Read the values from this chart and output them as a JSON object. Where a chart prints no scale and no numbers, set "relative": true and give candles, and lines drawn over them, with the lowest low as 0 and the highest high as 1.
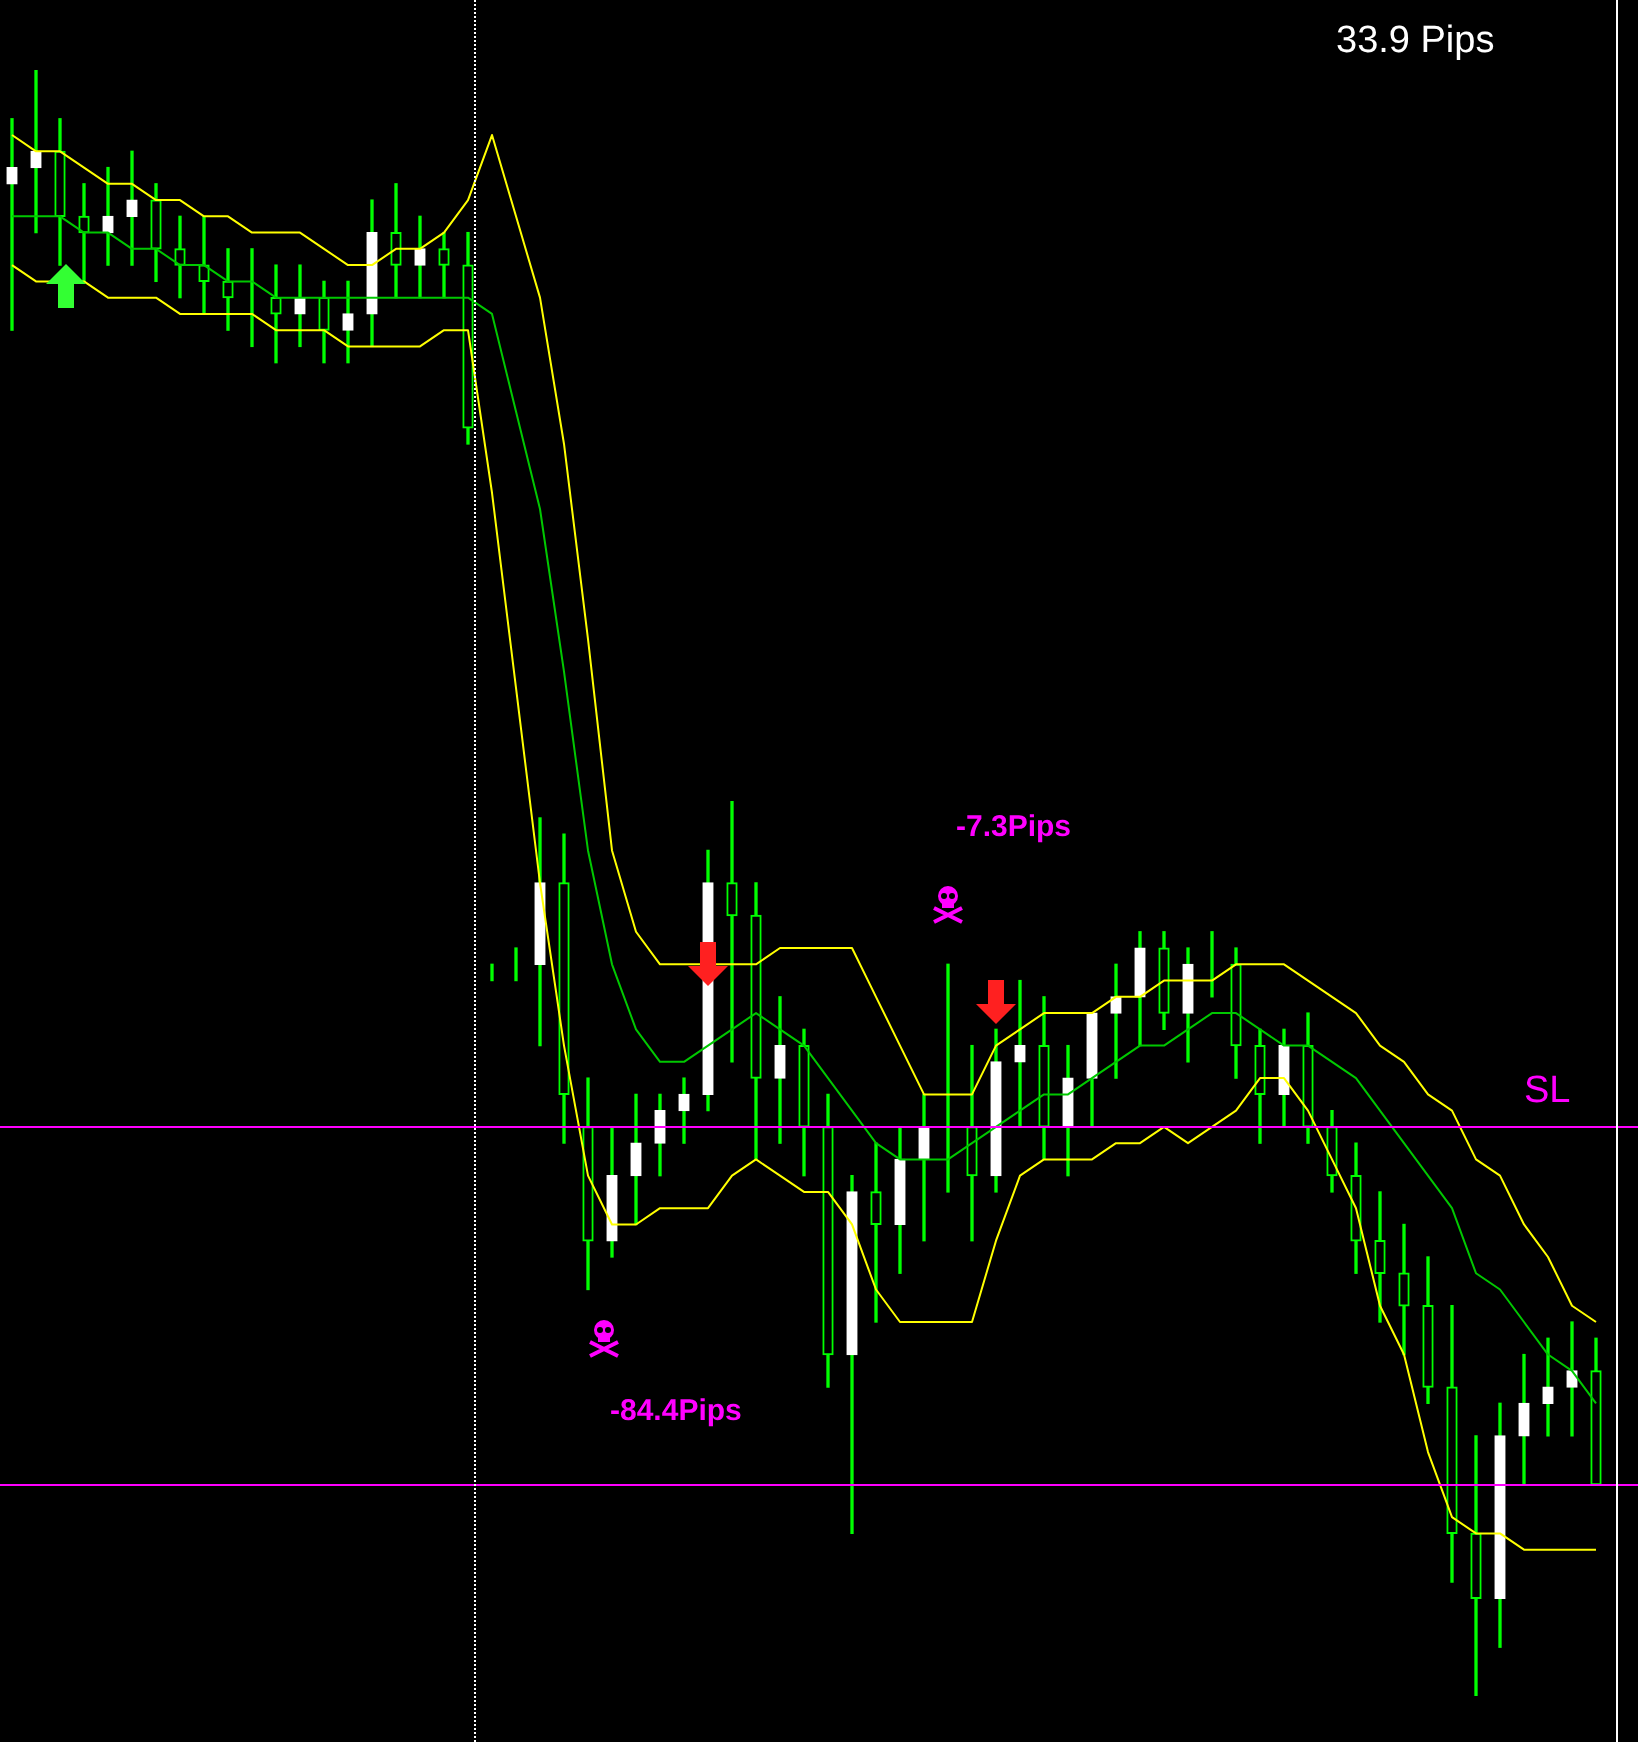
{
  "chart_data": {
    "type": "candlestick",
    "relative": true,
    "categories": [
      null,
      null,
      null,
      null,
      null,
      null,
      null,
      null,
      null,
      null,
      null,
      null,
      null,
      null,
      null,
      null,
      null,
      null,
      null,
      null,
      null,
      null,
      null,
      null,
      null,
      null,
      null,
      null,
      null,
      null,
      null,
      null,
      null,
      null,
      null,
      null,
      null,
      null,
      null,
      null,
      null,
      null,
      null,
      null,
      null,
      null,
      null,
      null,
      null,
      null,
      null,
      null,
      null,
      null,
      null,
      null,
      null,
      null,
      null,
      null,
      null,
      null,
      null,
      null,
      null,
      null,
      null
    ],
    "ohlc": [
      [
        0.93,
        0.97,
        0.84,
        0.94
      ],
      [
        0.94,
        1.0,
        0.9,
        0.95
      ],
      [
        0.95,
        0.97,
        0.88,
        0.91
      ],
      [
        0.91,
        0.93,
        0.87,
        0.9
      ],
      [
        0.9,
        0.94,
        0.88,
        0.91
      ],
      [
        0.91,
        0.95,
        0.88,
        0.92
      ],
      [
        0.92,
        0.93,
        0.87,
        0.89
      ],
      [
        0.89,
        0.91,
        0.86,
        0.88
      ],
      [
        0.88,
        0.91,
        0.85,
        0.87
      ],
      [
        0.87,
        0.89,
        0.84,
        0.86
      ],
      [
        0.86,
        0.89,
        0.83,
        0.86
      ],
      [
        0.86,
        0.88,
        0.82,
        0.85
      ],
      [
        0.85,
        0.88,
        0.83,
        0.86
      ],
      [
        0.86,
        0.87,
        0.82,
        0.84
      ],
      [
        0.84,
        0.87,
        0.82,
        0.85
      ],
      [
        0.85,
        0.92,
        0.83,
        0.9
      ],
      [
        0.9,
        0.93,
        0.86,
        0.88
      ],
      [
        0.88,
        0.91,
        0.86,
        0.89
      ],
      [
        0.89,
        0.9,
        0.86,
        0.88
      ],
      [
        0.88,
        0.9,
        0.77,
        0.78
      ],
      [
        0.45,
        0.45,
        0.44,
        0.45
      ],
      [
        0.45,
        0.46,
        0.44,
        0.45
      ],
      [
        0.45,
        0.54,
        0.4,
        0.5
      ],
      [
        0.5,
        0.53,
        0.34,
        0.37
      ],
      [
        0.35,
        0.38,
        0.25,
        0.28
      ],
      [
        0.28,
        0.35,
        0.27,
        0.32
      ],
      [
        0.32,
        0.37,
        0.29,
        0.34
      ],
      [
        0.34,
        0.37,
        0.32,
        0.36
      ],
      [
        0.36,
        0.38,
        0.34,
        0.37
      ],
      [
        0.37,
        0.52,
        0.36,
        0.5
      ],
      [
        0.5,
        0.55,
        0.39,
        0.48
      ],
      [
        0.48,
        0.5,
        0.33,
        0.38
      ],
      [
        0.38,
        0.43,
        0.34,
        0.4
      ],
      [
        0.4,
        0.41,
        0.32,
        0.35
      ],
      [
        0.35,
        0.37,
        0.19,
        0.21
      ],
      [
        0.21,
        0.32,
        0.1,
        0.31
      ],
      [
        0.31,
        0.34,
        0.23,
        0.29
      ],
      [
        0.29,
        0.35,
        0.26,
        0.33
      ],
      [
        0.33,
        0.37,
        0.28,
        0.35
      ],
      [
        0.35,
        0.45,
        0.31,
        0.35
      ],
      [
        0.35,
        0.4,
        0.28,
        0.32
      ],
      [
        0.32,
        0.41,
        0.31,
        0.39
      ],
      [
        0.39,
        0.44,
        0.35,
        0.4
      ],
      [
        0.4,
        0.43,
        0.33,
        0.35
      ],
      [
        0.35,
        0.4,
        0.32,
        0.38
      ],
      [
        0.38,
        0.42,
        0.35,
        0.42
      ],
      [
        0.42,
        0.45,
        0.38,
        0.43
      ],
      [
        0.43,
        0.47,
        0.4,
        0.46
      ],
      [
        0.46,
        0.47,
        0.41,
        0.42
      ],
      [
        0.42,
        0.46,
        0.39,
        0.45
      ],
      [
        0.45,
        0.47,
        0.43,
        0.45
      ],
      [
        0.45,
        0.46,
        0.38,
        0.4
      ],
      [
        0.4,
        0.41,
        0.34,
        0.37
      ],
      [
        0.37,
        0.41,
        0.35,
        0.4
      ],
      [
        0.4,
        0.42,
        0.34,
        0.35
      ],
      [
        0.35,
        0.36,
        0.31,
        0.32
      ],
      [
        0.32,
        0.34,
        0.26,
        0.28
      ],
      [
        0.28,
        0.31,
        0.23,
        0.26
      ],
      [
        0.26,
        0.29,
        0.21,
        0.24
      ],
      [
        0.24,
        0.27,
        0.18,
        0.19
      ],
      [
        0.19,
        0.24,
        0.07,
        0.1
      ],
      [
        0.1,
        0.16,
        0.0,
        0.06
      ],
      [
        0.06,
        0.18,
        0.03,
        0.16
      ],
      [
        0.16,
        0.21,
        0.13,
        0.18
      ],
      [
        0.18,
        0.22,
        0.16,
        0.19
      ],
      [
        0.19,
        0.23,
        0.16,
        0.2
      ],
      [
        0.2,
        0.22,
        0.13,
        0.13
      ]
    ],
    "series": [
      {
        "type": "line",
        "color": "#ffff00",
        "values": [
          0.96,
          0.95,
          0.95,
          0.94,
          0.93,
          0.93,
          0.92,
          0.92,
          0.91,
          0.91,
          0.9,
          0.9,
          0.9,
          0.89,
          0.88,
          0.88,
          0.89,
          0.89,
          0.9,
          0.92,
          0.96,
          0.91,
          0.86,
          0.77,
          0.65,
          0.52,
          0.47,
          0.45,
          0.45,
          0.45,
          0.45,
          0.45,
          0.46,
          0.46,
          0.46,
          0.46,
          0.43,
          0.4,
          0.37,
          0.37,
          0.37,
          0.4,
          0.41,
          0.42,
          0.42,
          0.42,
          0.43,
          0.43,
          0.44,
          0.44,
          0.44,
          0.45,
          0.45,
          0.45,
          0.44,
          0.43,
          0.42,
          0.4,
          0.39,
          0.37,
          0.36,
          0.33,
          0.32,
          0.29,
          0.27,
          0.24,
          0.23
        ]
      },
      {
        "type": "line",
        "color": "#00c800",
        "values": [
          0.91,
          0.91,
          0.91,
          0.9,
          0.9,
          0.89,
          0.89,
          0.88,
          0.88,
          0.87,
          0.87,
          0.86,
          0.86,
          0.86,
          0.86,
          0.86,
          0.86,
          0.86,
          0.86,
          0.86,
          0.85,
          0.79,
          0.73,
          0.63,
          0.52,
          0.45,
          0.41,
          0.39,
          0.39,
          0.4,
          0.41,
          0.42,
          0.41,
          0.4,
          0.38,
          0.36,
          0.34,
          0.33,
          0.33,
          0.33,
          0.34,
          0.35,
          0.36,
          0.37,
          0.37,
          0.38,
          0.39,
          0.4,
          0.4,
          0.41,
          0.42,
          0.42,
          0.41,
          0.4,
          0.4,
          0.39,
          0.38,
          0.36,
          0.34,
          0.32,
          0.3,
          0.26,
          0.25,
          0.23,
          0.21,
          0.2,
          0.18
        ]
      },
      {
        "type": "line",
        "color": "#ffff00",
        "values": [
          0.88,
          0.87,
          0.87,
          0.87,
          0.86,
          0.86,
          0.86,
          0.85,
          0.85,
          0.85,
          0.85,
          0.84,
          0.84,
          0.84,
          0.83,
          0.83,
          0.83,
          0.83,
          0.84,
          0.84,
          0.74,
          0.62,
          0.5,
          0.4,
          0.32,
          0.29,
          0.29,
          0.3,
          0.3,
          0.3,
          0.32,
          0.33,
          0.32,
          0.31,
          0.31,
          0.29,
          0.25,
          0.23,
          0.23,
          0.23,
          0.23,
          0.28,
          0.32,
          0.33,
          0.33,
          0.33,
          0.34,
          0.34,
          0.35,
          0.34,
          0.35,
          0.36,
          0.38,
          0.38,
          0.36,
          0.33,
          0.3,
          0.24,
          0.21,
          0.15,
          0.11,
          0.1,
          0.1,
          0.09,
          0.09,
          0.09,
          0.09
        ]
      }
    ],
    "ref_lines": [
      {
        "axis": "y",
        "value": 0.35,
        "label": "SL",
        "color": "#ff00ff"
      },
      {
        "axis": "y",
        "value": 0.13,
        "color": "#ff00ff"
      }
    ],
    "annotations": [
      "33.9 Pips",
      "-7.3Pips",
      "-84.4Pips"
    ],
    "legend": false,
    "marker": "none"
  }
}
